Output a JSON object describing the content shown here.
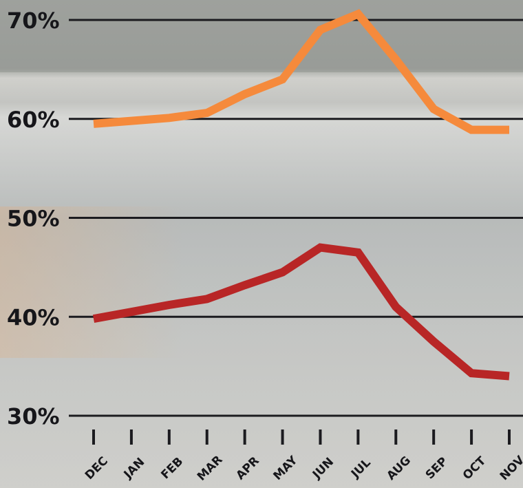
{
  "chart_data": {
    "type": "line",
    "categories": [
      "DEC",
      "JAN",
      "FEB",
      "MAR",
      "APR",
      "MAY",
      "JUN",
      "JUL",
      "AUG",
      "SEP",
      "OCT",
      "NOV"
    ],
    "series": [
      {
        "values": [
          59.5,
          59.8,
          60.1,
          60.6,
          62.5,
          64.0,
          69.0,
          70.6,
          66.0,
          61.0,
          58.9,
          58.9
        ],
        "color": "#f58a3c"
      },
      {
        "values": [
          39.8,
          40.5,
          41.2,
          41.8,
          43.2,
          44.5,
          47.0,
          46.5,
          41.0,
          37.5,
          34.3,
          34.0
        ],
        "color": "#b82626"
      }
    ],
    "y_ticks": [
      30,
      40,
      50,
      60,
      70
    ],
    "y_tick_labels": [
      "30%",
      "40%",
      "50%",
      "60%",
      "70%"
    ],
    "ylim": [
      30,
      70
    ],
    "grid": true,
    "colors": {
      "grid": "#1b1b1f",
      "text": "#16161a"
    }
  }
}
